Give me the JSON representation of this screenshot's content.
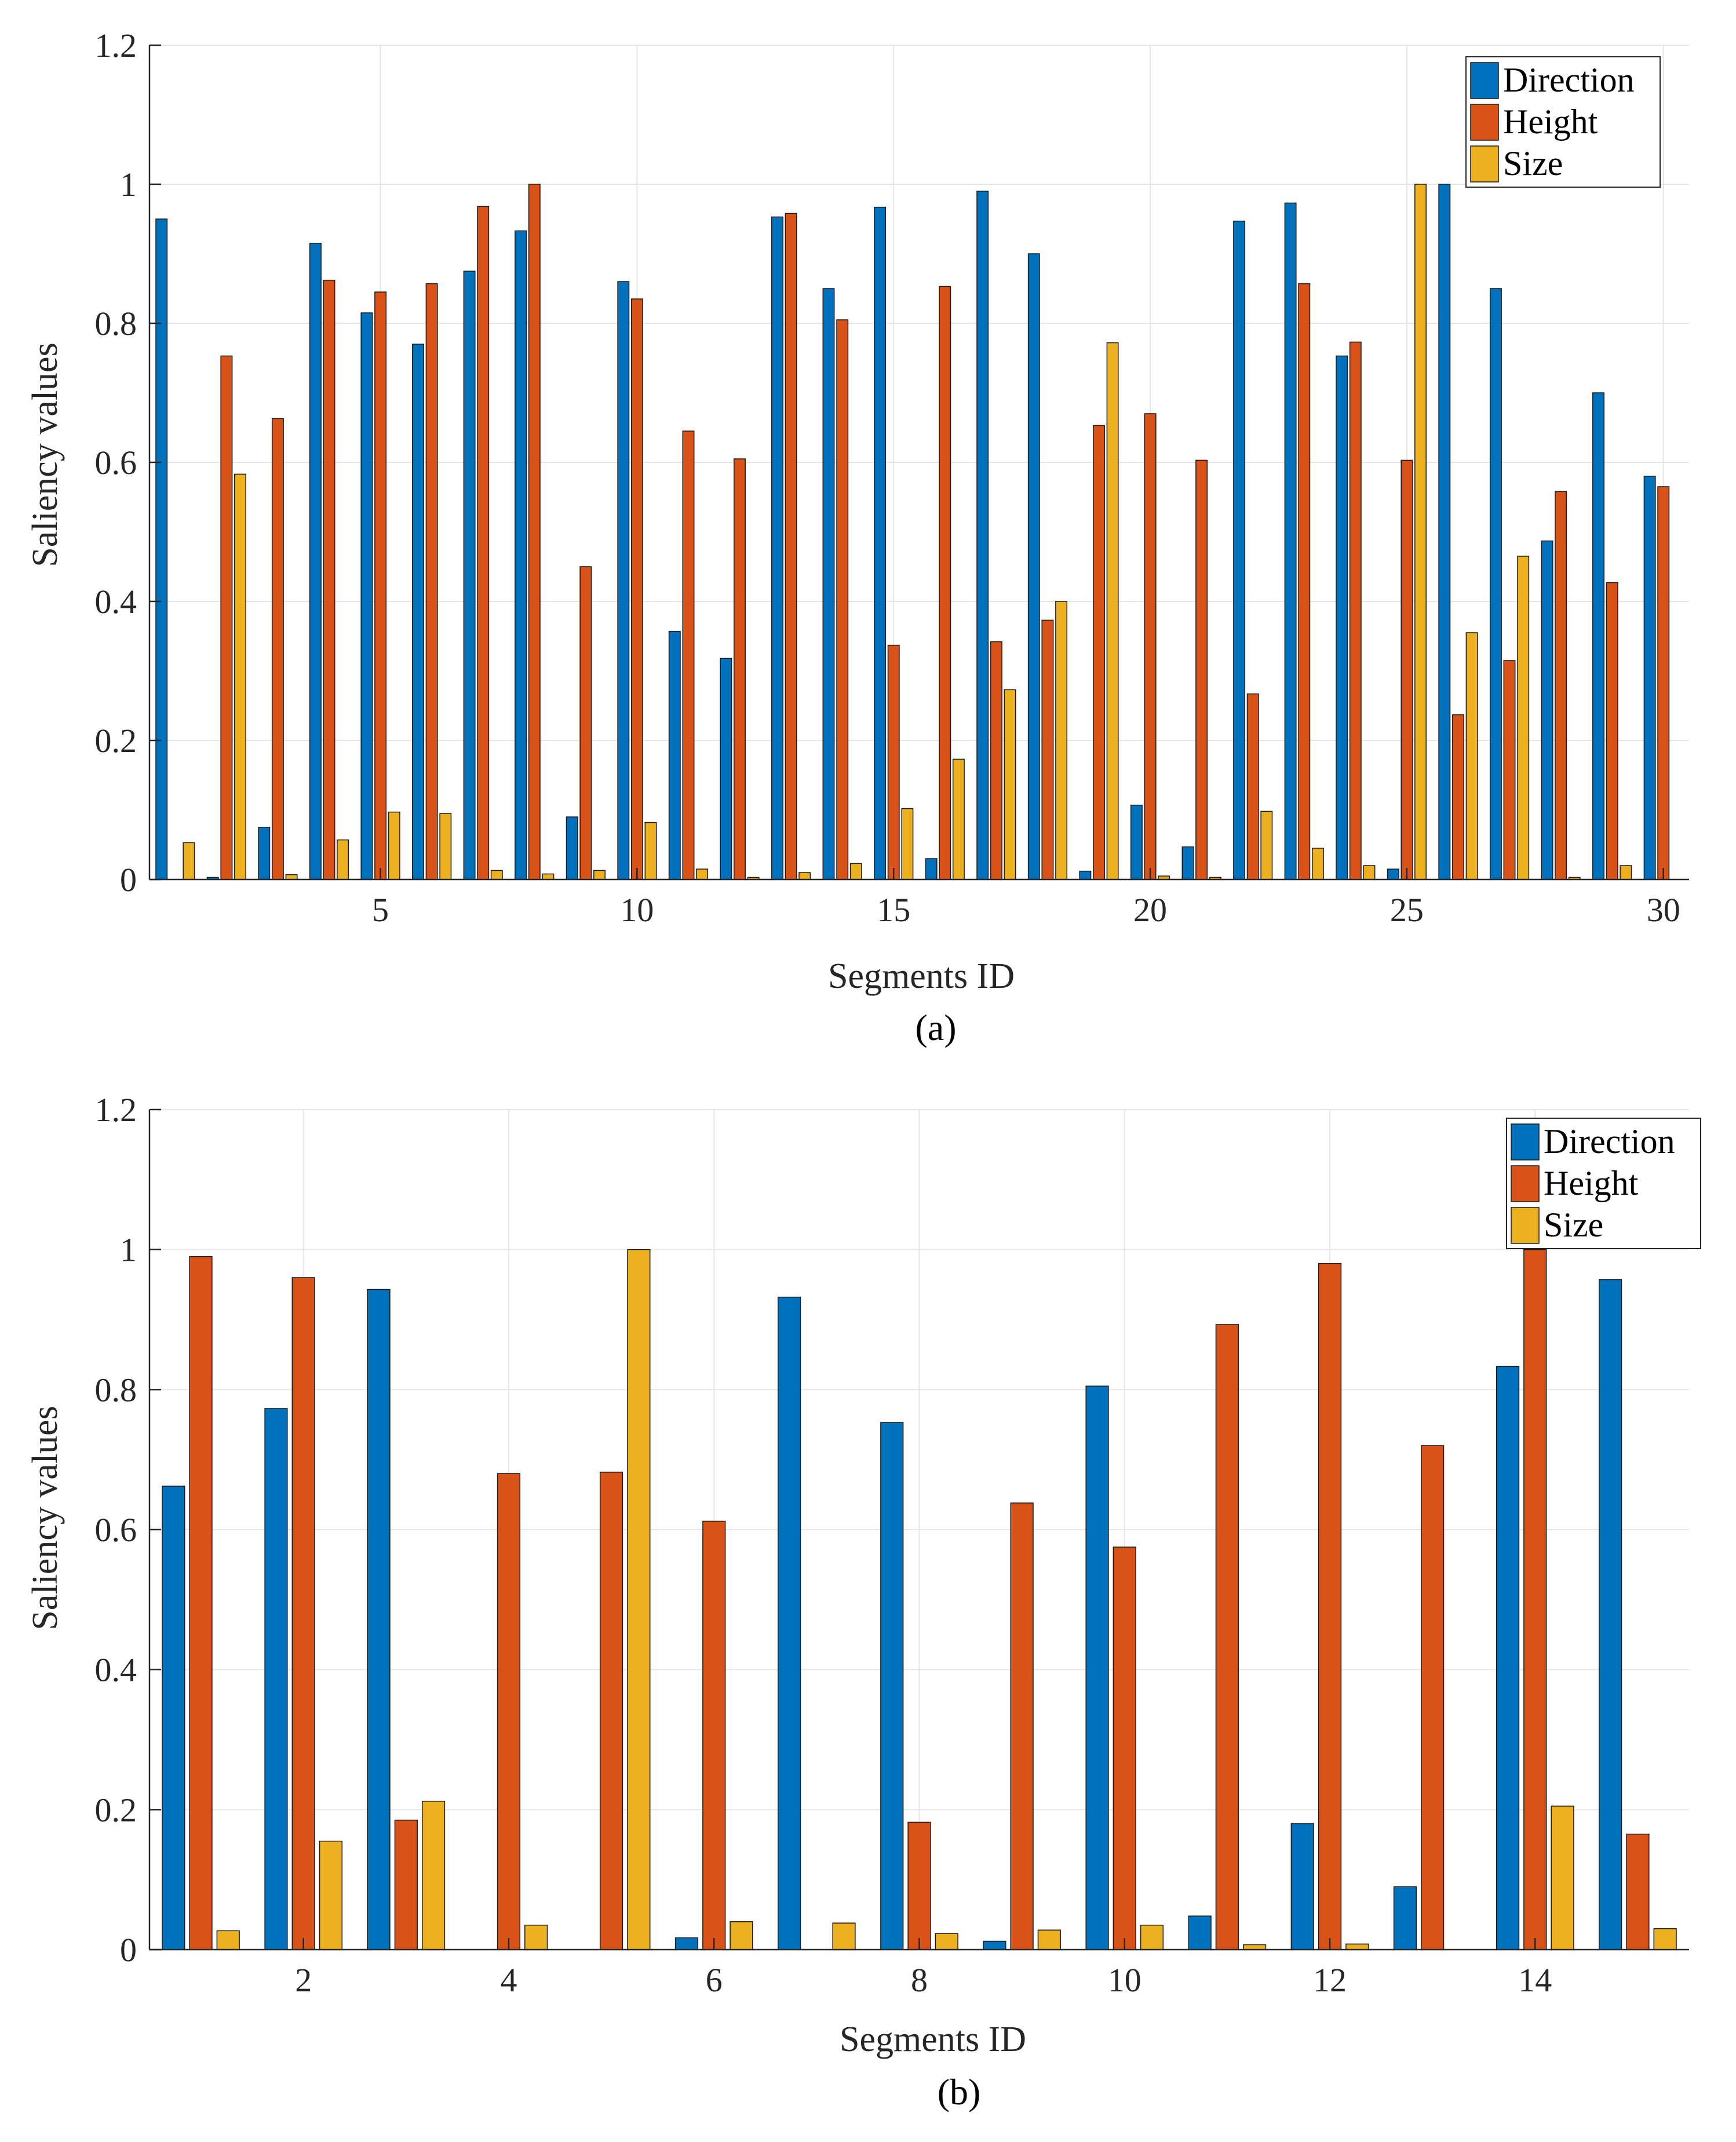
{
  "chart_data": [
    {
      "type": "bar",
      "caption": "(a)",
      "xlabel": "Segments ID",
      "ylabel": "Saliency values",
      "ylim": [
        0,
        1.2
      ],
      "yticks": [
        "0",
        "0.2",
        "0.4",
        "0.6",
        "0.8",
        "1",
        "1.2"
      ],
      "yticks_values": [
        0,
        0.2,
        0.4,
        0.6,
        0.8,
        1.0,
        1.2
      ],
      "xlim": [
        0.5,
        30.5
      ],
      "xticks": [
        5,
        10,
        15,
        20,
        25,
        30
      ],
      "xticks_labels": [
        "5",
        "10",
        "15",
        "20",
        "25",
        "30"
      ],
      "grid": true,
      "legend_position": "top-right",
      "categories": [
        1,
        2,
        3,
        4,
        5,
        6,
        7,
        8,
        9,
        10,
        11,
        12,
        13,
        14,
        15,
        16,
        17,
        18,
        19,
        20,
        21,
        22,
        23,
        24,
        25,
        26,
        27,
        28,
        29,
        30
      ],
      "series": [
        {
          "name": "Direction",
          "color": "#0072BD",
          "values": [
            0.95,
            0.003,
            0.075,
            0.915,
            0.815,
            0.77,
            0.875,
            0.933,
            0.09,
            0.86,
            0.357,
            0.318,
            0.953,
            0.85,
            0.967,
            0.03,
            0.99,
            0.9,
            0.012,
            0.107,
            0.047,
            0.947,
            0.973,
            0.753,
            0.015,
            1.0,
            0.85,
            0.487,
            0.7,
            0.58
          ]
        },
        {
          "name": "Height",
          "color": "#D95319",
          "values": [
            0,
            0.753,
            0.663,
            0.862,
            0.845,
            0.857,
            0.968,
            1.0,
            0.45,
            0.835,
            0.645,
            0.605,
            0.958,
            0.805,
            0.337,
            0.853,
            0.342,
            0.373,
            0.653,
            0.67,
            0.603,
            0.267,
            0.857,
            0.773,
            0.603,
            0.237,
            0.315,
            0.558,
            0.427,
            0.565
          ]
        },
        {
          "name": "Size",
          "color": "#EDB120",
          "values": [
            0.053,
            0.583,
            0.007,
            0.057,
            0.097,
            0.095,
            0.013,
            0.008,
            0.013,
            0.082,
            0.015,
            0.003,
            0.01,
            0.023,
            0.102,
            0.173,
            0.273,
            0.4,
            0.772,
            0.005,
            0.003,
            0.098,
            0.045,
            0.02,
            1.0,
            0.355,
            0.465,
            0.003,
            0.02,
            0
          ]
        }
      ]
    },
    {
      "type": "bar",
      "caption": "(b)",
      "xlabel": "Segments ID",
      "ylabel": "Saliency values",
      "ylim": [
        0,
        1.2
      ],
      "yticks": [
        "0",
        "0.2",
        "0.4",
        "0.6",
        "0.8",
        "1",
        "1.2"
      ],
      "yticks_values": [
        0,
        0.2,
        0.4,
        0.6,
        0.8,
        1.0,
        1.2
      ],
      "xlim": [
        0.5,
        15.5
      ],
      "xticks": [
        2,
        4,
        6,
        8,
        10,
        12,
        14
      ],
      "xticks_labels": [
        "2",
        "4",
        "6",
        "8",
        "10",
        "12",
        "14"
      ],
      "grid": true,
      "legend_position": "top-right",
      "categories": [
        1,
        2,
        3,
        4,
        5,
        6,
        7,
        8,
        9,
        10,
        11,
        12,
        13,
        14,
        15
      ],
      "series": [
        {
          "name": "Direction",
          "color": "#0072BD",
          "values": [
            0.662,
            0.773,
            0.943,
            0,
            0,
            0.017,
            0.932,
            0.753,
            0.012,
            0.805,
            0.048,
            0.18,
            0.09,
            0.833,
            0.957
          ]
        },
        {
          "name": "Height",
          "color": "#D95319",
          "values": [
            0.99,
            0.96,
            0.185,
            0.68,
            0.682,
            0.612,
            0,
            0.182,
            0.638,
            0.575,
            0.893,
            0.98,
            0.72,
            1.0,
            0.165
          ]
        },
        {
          "name": "Size",
          "color": "#EDB120",
          "values": [
            0.027,
            0.155,
            0.212,
            0.035,
            1.0,
            0.04,
            0.038,
            0.023,
            0.028,
            0.035,
            0.007,
            0.008,
            0,
            0.205,
            0.03
          ]
        }
      ]
    }
  ]
}
